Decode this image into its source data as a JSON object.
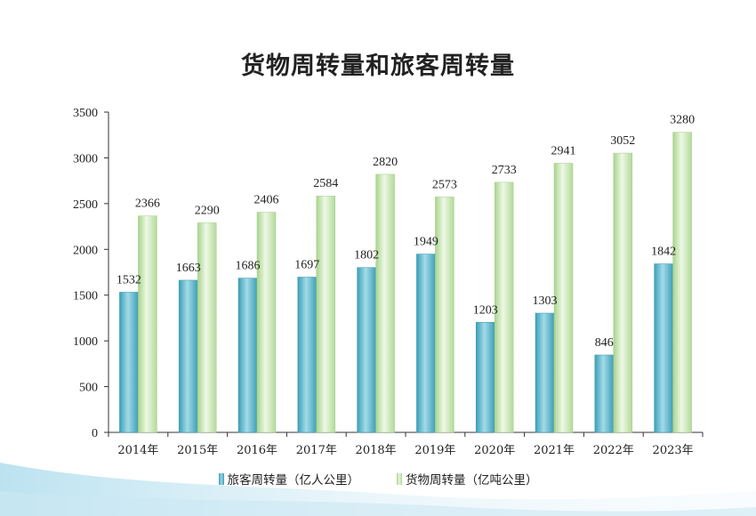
{
  "chart_data": {
    "type": "bar",
    "title": "货物周转量和旅客周转量",
    "categories": [
      "2014年",
      "2015年",
      "2016年",
      "2017年",
      "2018年",
      "2019年",
      "2020年",
      "2021年",
      "2022年",
      "2023年"
    ],
    "series": [
      {
        "name": "旅客周转量（亿人公里）",
        "values": [
          1532,
          1663,
          1686,
          1697,
          1802,
          1949,
          1203,
          1303,
          846,
          1842
        ],
        "color": "#5bb3c9"
      },
      {
        "name": "货物周转量（亿吨公里）",
        "values": [
          2366,
          2290,
          2406,
          2584,
          2820,
          2573,
          2733,
          2941,
          3052,
          3280
        ],
        "color": "#cdeab8"
      }
    ],
    "ylim": [
      0,
      3500
    ],
    "yticks": [
      0,
      500,
      1000,
      1500,
      2000,
      2500,
      3000,
      3500
    ],
    "grid": false,
    "legend": "bottom"
  }
}
